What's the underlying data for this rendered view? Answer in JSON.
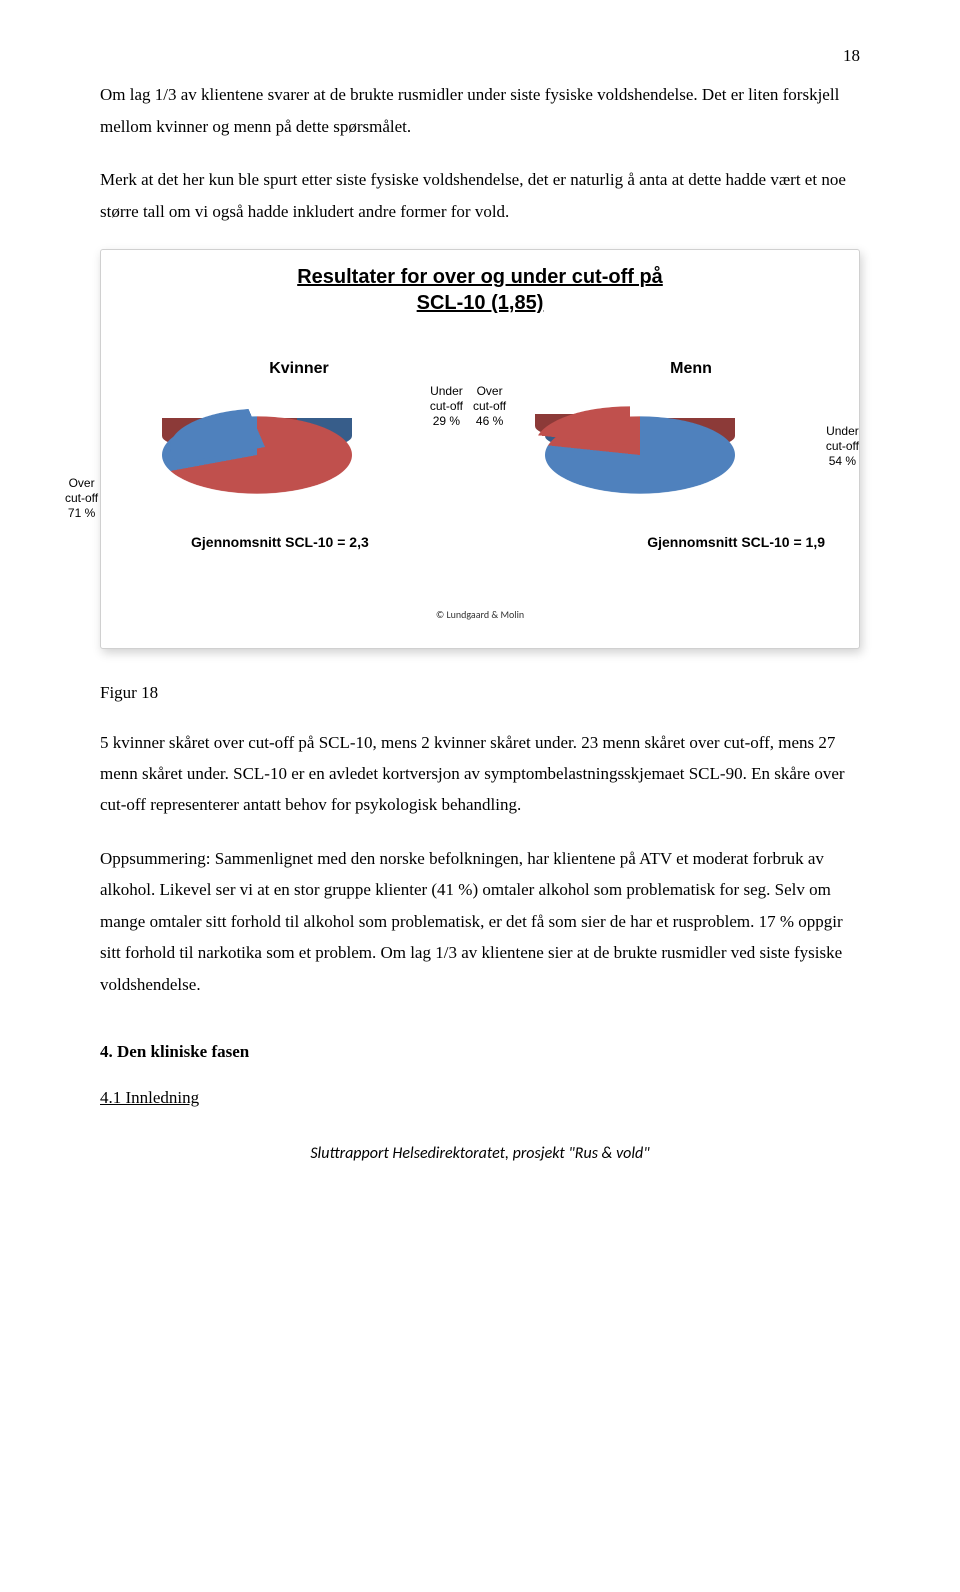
{
  "page_number": "18",
  "para1": "Om lag 1/3 av klientene svarer at de brukte rusmidler under siste fysiske voldshendelse. Det er liten forskjell mellom kvinner og menn på dette spørsmålet.",
  "para2": "Merk at det her kun ble spurt etter siste fysiske voldshendelse, det er naturlig å anta at dette hadde vært et noe større tall om vi også hadde inkludert andre former for vold.",
  "figure": {
    "title_line1": "Resultater for over og under cut-off på",
    "title_line2": "SCL-10 (1,85)",
    "copyright": "© Lundgaard & Molin",
    "kvinner": {
      "name": "Kvinner",
      "type": "pie",
      "slices": [
        {
          "label": "Over\ncut-off\n71 %",
          "value": 71,
          "color": "#c0504d",
          "edge": "#8c3a38"
        },
        {
          "label": "Under\ncut-off\n29 %",
          "value": 29,
          "color": "#4f81bd",
          "edge": "#375d8a"
        }
      ],
      "avg": "Gjennomsnitt SCL-10 = 2,3"
    },
    "menn": {
      "name": "Menn",
      "type": "pie",
      "slices": [
        {
          "label": "Over\ncut-off\n46 %",
          "value": 46,
          "color": "#c0504d",
          "edge": "#8c3a38"
        },
        {
          "label": "Under\ncut-off\n54 %",
          "value": 54,
          "color": "#4f81bd",
          "edge": "#375d8a"
        }
      ],
      "avg": "Gjennomsnitt SCL-10 = 1,9"
    },
    "background_color": "#ffffff",
    "label_fontsize": 12,
    "title_fontsize": 20
  },
  "figure_caption": "Figur 18",
  "para3": "5 kvinner skåret over cut-off på SCL-10, mens 2 kvinner skåret under. 23 menn skåret over cut-off, mens 27 menn skåret under. SCL-10 er en avledet kortversjon av symptombelastningsskjemaet SCL-90. En skåre over cut-off representerer antatt behov for psykologisk behandling.",
  "para4": "Oppsummering: Sammenlignet med den norske befolkningen, har klientene på ATV et moderat forbruk av alkohol. Likevel ser vi at en stor gruppe klienter (41 %) omtaler alkohol som problematisk for seg. Selv om mange omtaler sitt forhold til alkohol som problematisk, er det få som sier de har et rusproblem. 17 % oppgir sitt forhold til narkotika som et problem. Om lag 1/3 av klientene sier at de brukte rusmidler ved siste fysiske voldshendelse.",
  "section_heading": "4. Den kliniske fasen",
  "subsection": "4.1 Innledning",
  "footer": "Sluttrapport Helsedirektoratet, prosjekt \"Rus & vold\""
}
